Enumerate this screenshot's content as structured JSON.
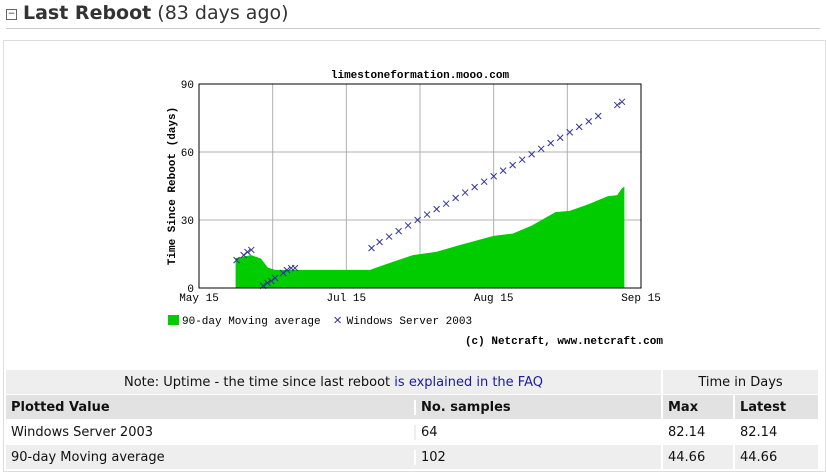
{
  "header": {
    "title": "Last Reboot",
    "subtitle": "(83 days ago)"
  },
  "chart_data": {
    "type": "mixed",
    "title": "limestoneformation.mooo.com",
    "y_label": "Time Since Reboot (days)",
    "copyright": "(c) Netcraft, www.netcraft.com",
    "xlim": [
      0,
      93
    ],
    "ylim": [
      0,
      90
    ],
    "xticks": [
      {
        "value": 0,
        "label": "May 15"
      },
      {
        "value": 15.5,
        "label": null
      },
      {
        "value": 31,
        "label": "Jul 15"
      },
      {
        "value": 46.5,
        "label": null
      },
      {
        "value": 62,
        "label": "Aug 15"
      },
      {
        "value": 77.5,
        "label": null
      },
      {
        "value": 93,
        "label": "Sep 15"
      }
    ],
    "yticks": [
      0,
      30,
      60,
      90
    ],
    "grid": true,
    "series": [
      {
        "name": "90-day Moving average",
        "type": "area",
        "color": "#00cc00",
        "x": [
          7.7,
          11,
          13,
          14.5,
          16,
          20,
          36,
          40,
          45,
          50,
          55,
          62,
          66,
          70,
          75,
          78,
          82,
          86,
          88,
          89,
          89.5
        ],
        "values": [
          13.2,
          14.5,
          13,
          9,
          8,
          8,
          8,
          11,
          14.5,
          16,
          19,
          23,
          24,
          27.5,
          33.5,
          34,
          37,
          40.5,
          41,
          44,
          44.66
        ]
      },
      {
        "name": "Windows Server 2003",
        "type": "scatter",
        "color": "#333399",
        "x": [
          7.9,
          9.4,
          10.2,
          11,
          13.5,
          14.4,
          15.2,
          16,
          17.7,
          18.5,
          19.4,
          20.2,
          36.3,
          38,
          40,
          42,
          44,
          46,
          48,
          50,
          52,
          54,
          56,
          58,
          60,
          62,
          64,
          66,
          68,
          70,
          72,
          74,
          76,
          78,
          80,
          82,
          84,
          88,
          89
        ],
        "values": [
          12.3,
          14.5,
          15.9,
          16.8,
          1,
          2.2,
          3.1,
          4.4,
          6.6,
          7.9,
          8.8,
          8.8,
          17.6,
          20.3,
          22.7,
          25.1,
          27.6,
          30,
          32.4,
          34.8,
          37.2,
          39.7,
          42.1,
          44.5,
          46.9,
          49.3,
          51.8,
          54.2,
          56.6,
          59,
          61.4,
          63.9,
          66.3,
          68.7,
          71.1,
          73.5,
          75.9,
          80.7,
          82.14
        ]
      }
    ]
  },
  "table": {
    "note": "Note: Uptime - the time since last reboot",
    "note_link": "is explained in the FAQ",
    "note_right": "Time in Days",
    "header": [
      "Plotted Value",
      "No. samples",
      "Max",
      "Latest"
    ],
    "rows": [
      [
        "Windows Server 2003",
        64,
        82.14,
        82.14
      ],
      [
        "90-day Moving average",
        102,
        44.66,
        44.66
      ]
    ]
  }
}
